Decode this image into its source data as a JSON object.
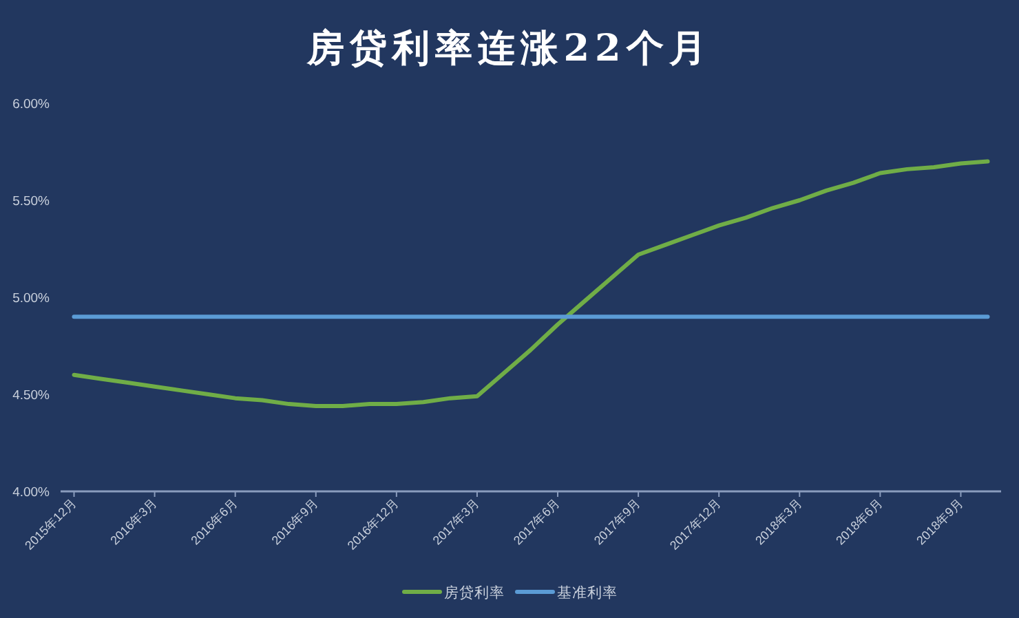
{
  "chart_data": {
    "type": "line",
    "title": "房贷利率连涨22个月",
    "categories": [
      "2015年12月",
      null,
      null,
      "2016年3月",
      null,
      null,
      "2016年6月",
      null,
      null,
      "2016年9月",
      null,
      null,
      "2016年12月",
      null,
      null,
      "2017年3月",
      null,
      null,
      "2017年6月",
      null,
      null,
      "2017年9月",
      null,
      null,
      "2017年12月",
      null,
      null,
      "2018年3月",
      null,
      null,
      "2018年6月",
      null,
      null,
      "2018年9月",
      null
    ],
    "series": [
      {
        "name": "房贷利率",
        "color": "#70ad47",
        "values": [
          4.6,
          4.58,
          4.56,
          4.54,
          4.52,
          4.5,
          4.48,
          4.47,
          4.45,
          4.44,
          4.44,
          4.45,
          4.45,
          4.46,
          4.48,
          4.49,
          4.61,
          4.73,
          4.86,
          4.98,
          5.1,
          5.22,
          5.27,
          5.32,
          5.37,
          5.41,
          5.46,
          5.5,
          5.55,
          5.59,
          5.64,
          5.66,
          5.67,
          5.69,
          5.7
        ]
      },
      {
        "name": "基准利率",
        "color": "#5b9bd5",
        "values": [
          4.9,
          4.9,
          4.9,
          4.9,
          4.9,
          4.9,
          4.9,
          4.9,
          4.9,
          4.9,
          4.9,
          4.9,
          4.9,
          4.9,
          4.9,
          4.9,
          4.9,
          4.9,
          4.9,
          4.9,
          4.9,
          4.9,
          4.9,
          4.9,
          4.9,
          4.9,
          4.9,
          4.9,
          4.9,
          4.9,
          4.9,
          4.9,
          4.9,
          4.9,
          4.9
        ]
      }
    ],
    "ylim": [
      4,
      6
    ],
    "yticks": [
      {
        "value": 4,
        "label": "4.00%"
      },
      {
        "value": 4.5,
        "label": "4.50%"
      },
      {
        "value": 5,
        "label": "5.00%"
      },
      {
        "value": 5.5,
        "label": "5.50%"
      },
      {
        "value": 6,
        "label": "6.00%"
      }
    ],
    "grid": false,
    "legend": "bottom",
    "marker": "none"
  }
}
